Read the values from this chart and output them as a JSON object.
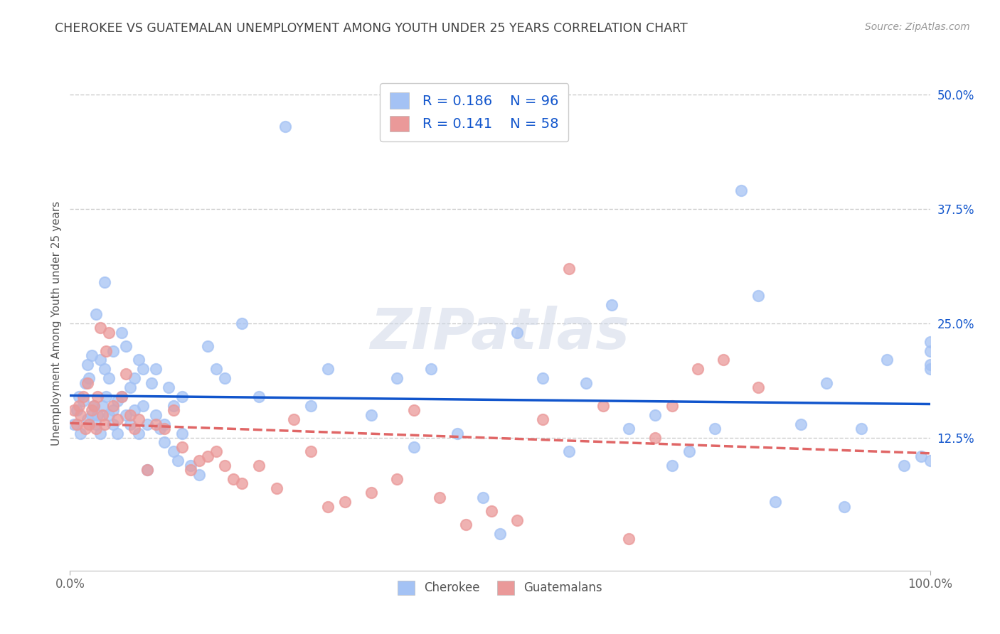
{
  "title": "CHEROKEE VS GUATEMALAN UNEMPLOYMENT AMONG YOUTH UNDER 25 YEARS CORRELATION CHART",
  "source": "Source: ZipAtlas.com",
  "ylabel": "Unemployment Among Youth under 25 years",
  "cherokee_R": "0.186",
  "cherokee_N": "96",
  "guatemalan_R": "0.141",
  "guatemalan_N": "58",
  "blue_scatter_color": "#a4c2f4",
  "pink_scatter_color": "#ea9999",
  "blue_line_color": "#1155cc",
  "pink_line_color": "#e06666",
  "title_color": "#434343",
  "source_color": "#999999",
  "legend_text_color": "#1155cc",
  "watermark": "ZIPatlas",
  "background_color": "#ffffff",
  "cherokee_x": [
    0.5,
    0.8,
    1.0,
    1.2,
    1.5,
    1.8,
    2.0,
    2.0,
    2.2,
    2.5,
    2.5,
    2.8,
    3.0,
    3.0,
    3.2,
    3.5,
    3.5,
    3.8,
    4.0,
    4.0,
    4.2,
    4.5,
    4.5,
    5.0,
    5.0,
    5.0,
    5.5,
    5.5,
    6.0,
    6.0,
    6.5,
    6.5,
    7.0,
    7.0,
    7.5,
    7.5,
    8.0,
    8.0,
    8.5,
    8.5,
    9.0,
    9.0,
    9.5,
    10.0,
    10.0,
    10.5,
    11.0,
    11.0,
    11.5,
    12.0,
    12.0,
    12.5,
    13.0,
    13.0,
    14.0,
    15.0,
    16.0,
    17.0,
    18.0,
    20.0,
    22.0,
    25.0,
    28.0,
    30.0,
    35.0,
    38.0,
    40.0,
    42.0,
    45.0,
    48.0,
    50.0,
    52.0,
    55.0,
    58.0,
    60.0,
    63.0,
    65.0,
    68.0,
    70.0,
    72.0,
    75.0,
    78.0,
    80.0,
    82.0,
    85.0,
    88.0,
    90.0,
    92.0,
    95.0,
    97.0,
    99.0,
    100.0,
    100.0,
    100.0,
    100.0,
    100.0
  ],
  "cherokee_y": [
    14.0,
    15.5,
    17.0,
    13.0,
    16.5,
    18.5,
    14.5,
    20.5,
    19.0,
    15.0,
    21.5,
    16.0,
    14.0,
    26.0,
    15.0,
    21.0,
    13.0,
    16.0,
    20.0,
    29.5,
    17.0,
    15.0,
    19.0,
    14.0,
    15.5,
    22.0,
    16.5,
    13.0,
    24.0,
    17.0,
    15.0,
    22.5,
    18.0,
    14.0,
    19.0,
    15.5,
    21.0,
    13.0,
    16.0,
    20.0,
    14.0,
    9.0,
    18.5,
    20.0,
    15.0,
    13.5,
    12.0,
    14.0,
    18.0,
    11.0,
    16.0,
    10.0,
    13.0,
    17.0,
    9.5,
    8.5,
    22.5,
    20.0,
    19.0,
    25.0,
    17.0,
    46.5,
    16.0,
    20.0,
    15.0,
    19.0,
    11.5,
    20.0,
    13.0,
    6.0,
    2.0,
    24.0,
    19.0,
    11.0,
    18.5,
    27.0,
    13.5,
    15.0,
    9.5,
    11.0,
    13.5,
    39.5,
    28.0,
    5.5,
    14.0,
    18.5,
    5.0,
    13.5,
    21.0,
    9.5,
    10.5,
    20.5,
    22.0,
    20.0,
    10.0,
    23.0
  ],
  "guatemalan_x": [
    0.5,
    0.8,
    1.0,
    1.2,
    1.5,
    1.8,
    2.0,
    2.2,
    2.5,
    2.8,
    3.0,
    3.2,
    3.5,
    3.8,
    4.0,
    4.2,
    4.5,
    5.0,
    5.5,
    6.0,
    6.5,
    7.0,
    7.5,
    8.0,
    9.0,
    10.0,
    11.0,
    12.0,
    13.0,
    14.0,
    15.0,
    16.0,
    17.0,
    18.0,
    19.0,
    20.0,
    22.0,
    24.0,
    26.0,
    28.0,
    30.0,
    32.0,
    35.0,
    38.0,
    40.0,
    43.0,
    46.0,
    49.0,
    52.0,
    55.0,
    58.0,
    62.0,
    65.0,
    68.0,
    70.0,
    73.0,
    76.0,
    80.0
  ],
  "guatemalan_y": [
    15.5,
    14.0,
    16.0,
    15.0,
    17.0,
    13.5,
    18.5,
    14.0,
    15.5,
    16.0,
    13.5,
    17.0,
    24.5,
    15.0,
    14.0,
    22.0,
    24.0,
    16.0,
    14.5,
    17.0,
    19.5,
    15.0,
    13.5,
    14.5,
    9.0,
    14.0,
    13.5,
    15.5,
    11.5,
    9.0,
    10.0,
    10.5,
    11.0,
    9.5,
    8.0,
    7.5,
    9.5,
    7.0,
    14.5,
    11.0,
    5.0,
    5.5,
    6.5,
    8.0,
    15.5,
    6.0,
    3.0,
    4.5,
    3.5,
    14.5,
    31.0,
    16.0,
    1.5,
    12.5,
    16.0,
    20.0,
    21.0,
    18.0
  ]
}
